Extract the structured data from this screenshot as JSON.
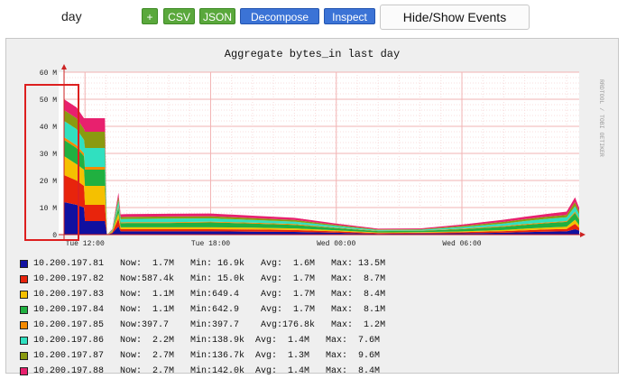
{
  "toolbar": {
    "period": "day",
    "add_label": "+",
    "csv_label": "CSV",
    "json_label": "JSON",
    "decompose_label": "Decompose",
    "inspect_label": "Inspect",
    "events_label": "Hide/Show Events"
  },
  "chart": {
    "title": "Aggregate bytes_in last day",
    "watermark": "RRDTOOL / TOBI OETIKER",
    "y_ticks": [
      "0",
      "10 M",
      "20 M",
      "30 M",
      "40 M",
      "50 M",
      "60 M"
    ],
    "x_ticks": [
      "Tue 12:00",
      "Tue 18:00",
      "Wed 00:00",
      "Wed 06:00"
    ]
  },
  "chart_data": {
    "type": "area",
    "title": "Aggregate bytes_in last day",
    "stacked": true,
    "ylim": [
      0,
      60
    ],
    "y_unit": "M",
    "x_ticks": [
      "Tue 12:00",
      "Tue 18:00",
      "Wed 00:00",
      "Wed 06:00"
    ],
    "x_hours": [
      -1.0,
      -0.4,
      -0.05,
      0.0,
      0.95,
      1.05,
      1.3,
      1.6,
      1.7,
      2.0,
      4.0,
      6.0,
      8.0,
      10.0,
      12.0,
      14.0,
      16.0,
      18.0,
      20.0,
      21.0,
      22.0,
      23.0,
      23.4,
      23.6
    ],
    "series": [
      {
        "name": "10.200.197.81",
        "color": "#1010a0",
        "values": [
          12,
          11,
          10,
          5,
          5,
          0,
          0.5,
          3,
          1.2,
          1.2,
          1.2,
          1.2,
          1.1,
          1.0,
          0.7,
          0.3,
          0.4,
          0.5,
          0.7,
          0.9,
          1.1,
          1.2,
          2.0,
          1.5
        ]
      },
      {
        "name": "10.200.197.82",
        "color": "#e8240c",
        "values": [
          10,
          9,
          8,
          6,
          6,
          0,
          0.3,
          3,
          0.8,
          0.8,
          0.8,
          0.8,
          0.8,
          0.7,
          0.5,
          0.3,
          0.3,
          0.4,
          0.6,
          0.7,
          0.8,
          0.9,
          2,
          1
        ]
      },
      {
        "name": "10.200.197.83",
        "color": "#f5c000",
        "values": [
          7,
          6,
          6,
          7,
          7,
          0,
          0.3,
          2,
          0.7,
          0.7,
          0.7,
          0.7,
          0.7,
          0.6,
          0.4,
          0.2,
          0.2,
          0.3,
          0.4,
          0.6,
          0.7,
          0.8,
          1.5,
          1
        ]
      },
      {
        "name": "10.200.197.84",
        "color": "#20b040",
        "values": [
          6,
          6,
          5,
          6,
          6,
          0,
          0.2,
          2,
          1.5,
          1.6,
          1.6,
          1.8,
          1.5,
          1.3,
          0.8,
          0.5,
          0.5,
          0.8,
          1.2,
          1.4,
          1.6,
          1.8,
          2.5,
          2
        ]
      },
      {
        "name": "10.200.197.85",
        "color": "#f58a00",
        "values": [
          1,
          1,
          1,
          1,
          1,
          0,
          0.1,
          0.5,
          0.3,
          0.3,
          0.3,
          0.3,
          0.3,
          0.3,
          0.2,
          0.1,
          0.1,
          0.2,
          0.3,
          0.3,
          0.3,
          0.3,
          0.5,
          0.4
        ]
      },
      {
        "name": "10.200.197.86",
        "color": "#30e0c0",
        "values": [
          6,
          6,
          5,
          7,
          7,
          0,
          0.2,
          2,
          1.2,
          1.2,
          1.3,
          1.2,
          1.0,
          0.9,
          0.6,
          0.3,
          0.3,
          0.6,
          0.9,
          1.1,
          1.3,
          1.4,
          2,
          1.6
        ]
      },
      {
        "name": "10.200.197.87",
        "color": "#8a9a10",
        "values": [
          4,
          4,
          4,
          6,
          6,
          0,
          0.2,
          1.5,
          0.8,
          0.8,
          0.8,
          0.8,
          0.7,
          0.6,
          0.4,
          0.2,
          0.2,
          0.4,
          0.6,
          0.7,
          0.8,
          0.9,
          1.5,
          1
        ]
      },
      {
        "name": "10.200.197.88",
        "color": "#e8206e",
        "values": [
          4,
          4,
          4,
          5,
          5,
          0,
          0.2,
          1.5,
          1.0,
          1.0,
          1.0,
          1.0,
          0.9,
          0.8,
          0.5,
          0.3,
          0.3,
          0.5,
          0.8,
          0.9,
          1.0,
          1.2,
          1.8,
          1.4
        ]
      }
    ],
    "grid": true,
    "legend": "below"
  },
  "legend": [
    {
      "host": "10.200.197.81",
      "color": "#1010a0",
      "text": "10.200.197.81   Now:  1.7M   Min: 16.9k   Avg:  1.6M   Max: 13.5M"
    },
    {
      "host": "10.200.197.82",
      "color": "#e8240c",
      "text": "10.200.197.82   Now:587.4k   Min: 15.0k   Avg:  1.7M   Max:  8.7M"
    },
    {
      "host": "10.200.197.83",
      "color": "#f5c000",
      "text": "10.200.197.83   Now:  1.1M   Min:649.4    Avg:  1.7M   Max:  8.4M"
    },
    {
      "host": "10.200.197.84",
      "color": "#20b040",
      "text": "10.200.197.84   Now:  1.1M   Min:642.9    Avg:  1.7M   Max:  8.1M"
    },
    {
      "host": "10.200.197.85",
      "color": "#f58a00",
      "text": "10.200.197.85   Now:397.7    Min:397.7    Avg:176.8k   Max:  1.2M"
    },
    {
      "host": "10.200.197.86",
      "color": "#30e0c0",
      "text": "10.200.197.86   Now:  2.2M   Min:138.9k  Avg:  1.4M   Max:  7.6M"
    },
    {
      "host": "10.200.197.87",
      "color": "#8a9a10",
      "text": "10.200.197.87   Now:  2.7M   Min:136.7k  Avg:  1.3M   Max:  9.6M"
    },
    {
      "host": "10.200.197.88",
      "color": "#e8206e",
      "text": "10.200.197.88   Now:  2.7M   Min:142.0k  Avg:  1.4M   Max:  8.4M"
    }
  ]
}
